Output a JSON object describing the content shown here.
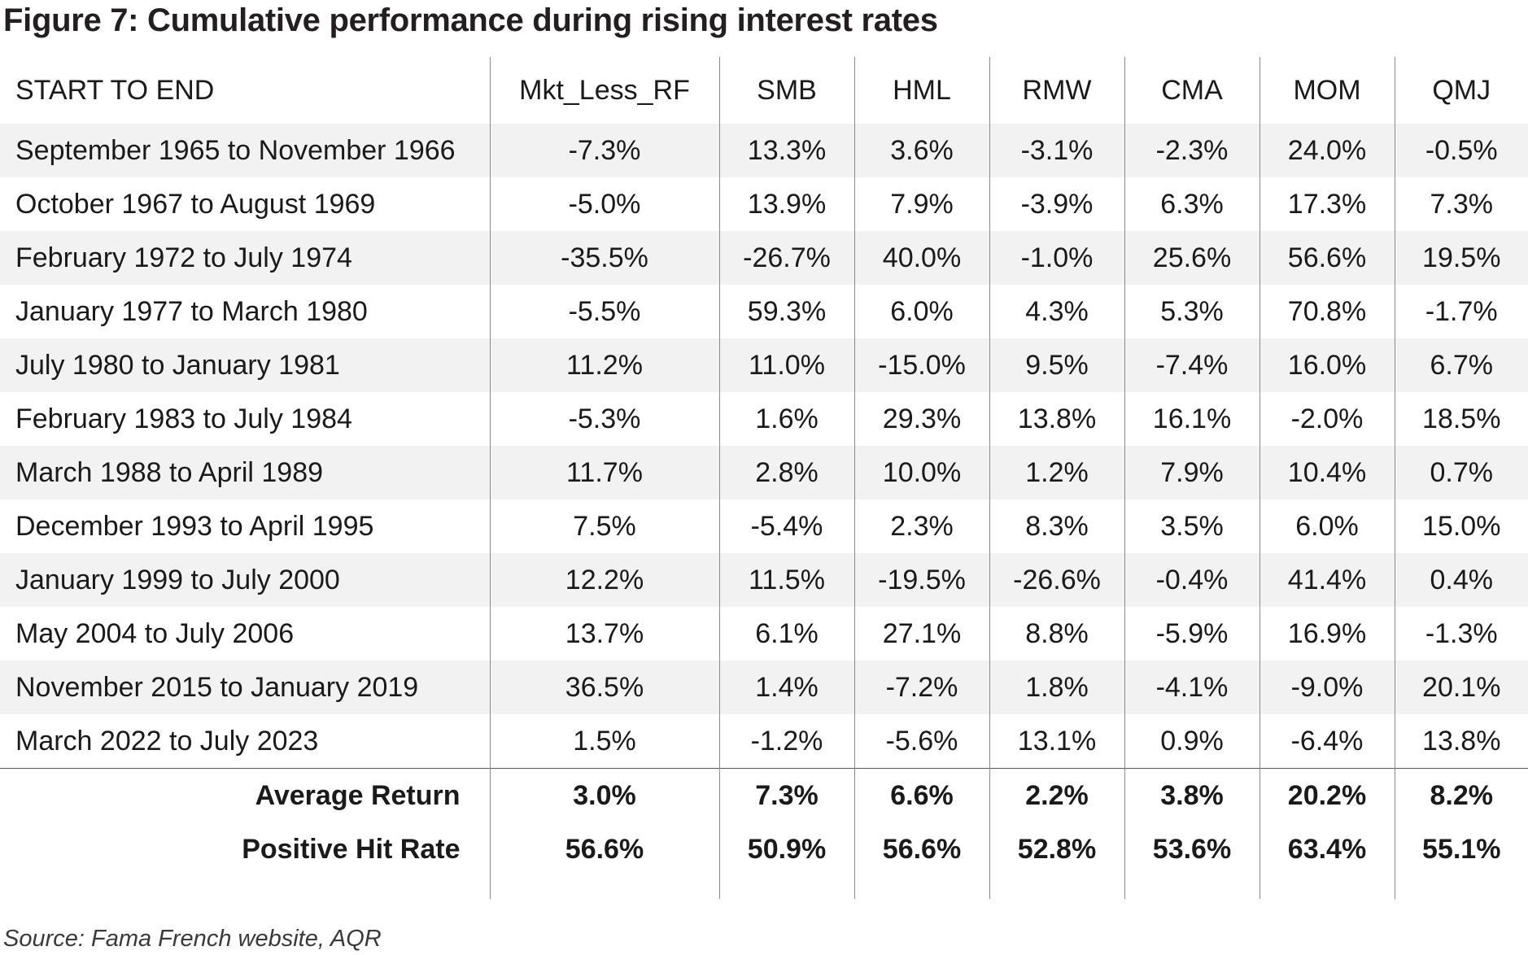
{
  "title": "Figure 7: Cumulative performance during rising interest rates",
  "table": {
    "headers": [
      "START TO END",
      "Mkt_Less_RF",
      "SMB",
      "HML",
      "RMW",
      "CMA",
      "MOM",
      "QMJ"
    ],
    "rows": [
      {
        "period": "September 1965 to November 1966",
        "values": [
          "-7.3%",
          "13.3%",
          "3.6%",
          "-3.1%",
          "-2.3%",
          "24.0%",
          "-0.5%"
        ]
      },
      {
        "period": "October 1967 to August 1969",
        "values": [
          "-5.0%",
          "13.9%",
          "7.9%",
          "-3.9%",
          "6.3%",
          "17.3%",
          "7.3%"
        ]
      },
      {
        "period": "February 1972 to July 1974",
        "values": [
          "-35.5%",
          "-26.7%",
          "40.0%",
          "-1.0%",
          "25.6%",
          "56.6%",
          "19.5%"
        ]
      },
      {
        "period": "January 1977 to March 1980",
        "values": [
          "-5.5%",
          "59.3%",
          "6.0%",
          "4.3%",
          "5.3%",
          "70.8%",
          "-1.7%"
        ]
      },
      {
        "period": "July 1980 to January 1981",
        "values": [
          "11.2%",
          "11.0%",
          "-15.0%",
          "9.5%",
          "-7.4%",
          "16.0%",
          "6.7%"
        ]
      },
      {
        "period": "February 1983 to July 1984",
        "values": [
          "-5.3%",
          "1.6%",
          "29.3%",
          "13.8%",
          "16.1%",
          "-2.0%",
          "18.5%"
        ]
      },
      {
        "period": "March 1988 to April 1989",
        "values": [
          "11.7%",
          "2.8%",
          "10.0%",
          "1.2%",
          "7.9%",
          "10.4%",
          "0.7%"
        ]
      },
      {
        "period": "December 1993 to April 1995",
        "values": [
          "7.5%",
          "-5.4%",
          "2.3%",
          "8.3%",
          "3.5%",
          "6.0%",
          "15.0%"
        ]
      },
      {
        "period": "January 1999 to July 2000",
        "values": [
          "12.2%",
          "11.5%",
          "-19.5%",
          "-26.6%",
          "-0.4%",
          "41.4%",
          "0.4%"
        ]
      },
      {
        "period": "May 2004 to July 2006",
        "values": [
          "13.7%",
          "6.1%",
          "27.1%",
          "8.8%",
          "-5.9%",
          "16.9%",
          "-1.3%"
        ]
      },
      {
        "period": "November 2015 to January 2019",
        "values": [
          "36.5%",
          "1.4%",
          "-7.2%",
          "1.8%",
          "-4.1%",
          "-9.0%",
          "20.1%"
        ]
      },
      {
        "period": "March 2022 to July 2023",
        "values": [
          "1.5%",
          "-1.2%",
          "-5.6%",
          "13.1%",
          "0.9%",
          "-6.4%",
          "13.8%"
        ]
      }
    ],
    "summary": [
      {
        "label": "Average Return",
        "values": [
          "3.0%",
          "7.3%",
          "6.6%",
          "2.2%",
          "3.8%",
          "20.2%",
          "8.2%"
        ]
      },
      {
        "label": "Positive Hit Rate",
        "values": [
          "56.6%",
          "50.9%",
          "56.6%",
          "52.8%",
          "53.6%",
          "63.4%",
          "55.1%"
        ]
      }
    ]
  },
  "source": "Source: Fama French website, AQR",
  "colors": {
    "row_shade": "#f1f2f1",
    "divider": "#8a8a8a",
    "text": "#1a1a1a"
  }
}
